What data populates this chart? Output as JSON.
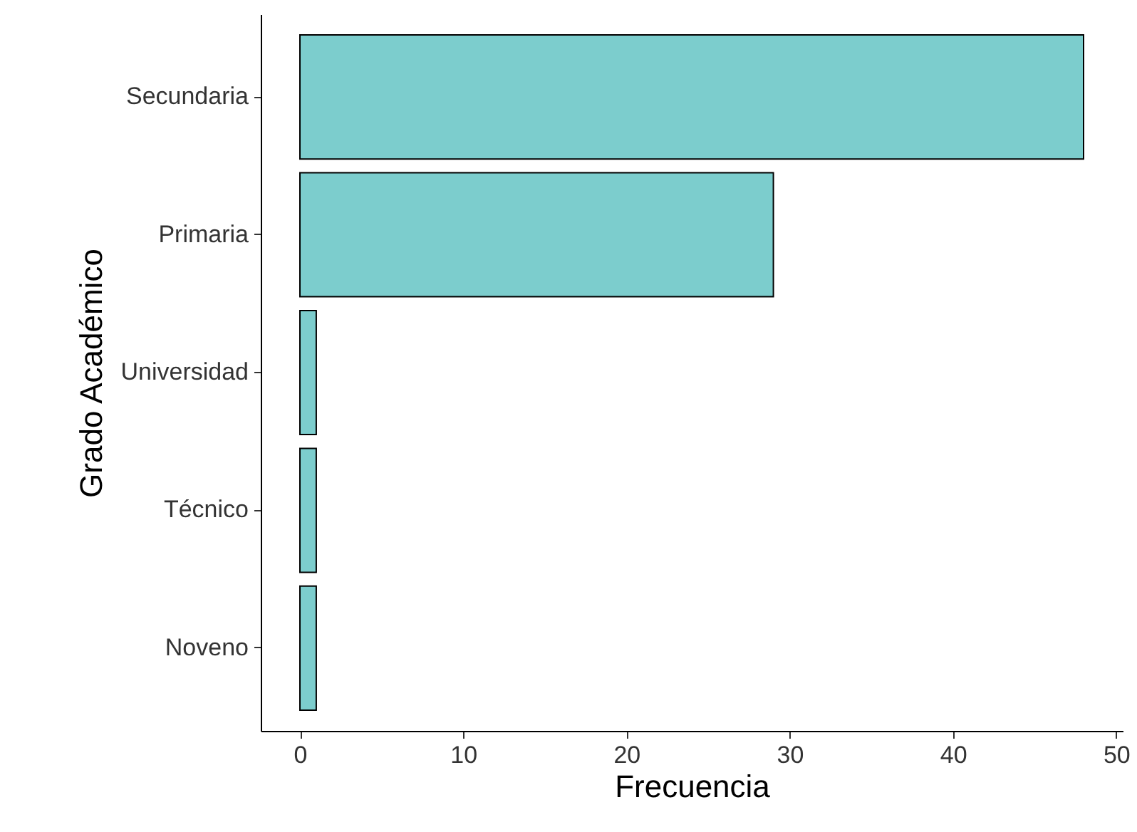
{
  "chart_data": {
    "type": "bar",
    "orientation": "horizontal",
    "xlabel": "Frecuencia",
    "ylabel": "Grado Académico",
    "categories": [
      "Secundaria",
      "Primaria",
      "Universidad",
      "Técnico",
      "Noveno"
    ],
    "values": [
      48,
      29,
      1,
      1,
      1
    ],
    "color": "#7ccdcd",
    "xlim": [
      -2.4,
      50.4
    ],
    "xticks": [
      0,
      10,
      20,
      30,
      40,
      50
    ],
    "grid": false
  }
}
